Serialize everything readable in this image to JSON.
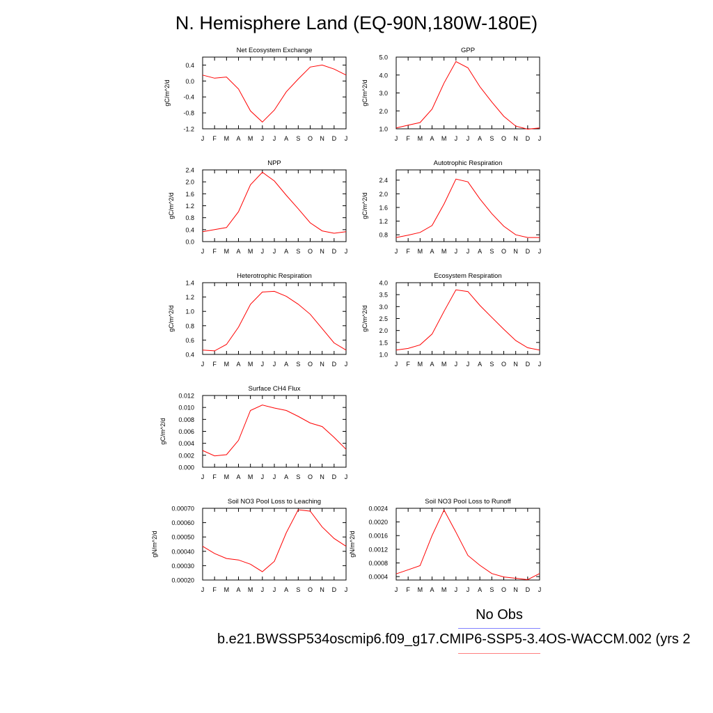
{
  "title": "N. Hemisphere Land (EQ-90N,180W-180E)",
  "legend": {
    "obs_label": "No Obs",
    "case_label": "b.e21.BWSSP534oscmip6.f09_g17.CMIP6-SSP5-3.4OS-WACCM.002 (yrs 2",
    "obs_color": "#8080ff",
    "case_color": "#ff8080"
  },
  "chart_data": [
    {
      "type": "line",
      "title": "Net Ecosystem Exchange",
      "ylabel": "gC/m^2/d",
      "x": [
        "J",
        "F",
        "M",
        "A",
        "M",
        "J",
        "J",
        "A",
        "S",
        "O",
        "N",
        "D",
        "J"
      ],
      "series": [
        {
          "color": "#ff0000",
          "values": [
            0.15,
            0.07,
            0.1,
            -0.2,
            -0.75,
            -1.03,
            -0.73,
            -0.27,
            0.05,
            0.35,
            0.4,
            0.3,
            0.15
          ]
        }
      ],
      "ylim": [
        -1.2,
        0.6
      ],
      "yticks": [
        "-1.2",
        "-0.8",
        "-0.4",
        "0.0",
        "0.4"
      ]
    },
    {
      "type": "line",
      "title": "GPP",
      "ylabel": "gC/m^2/d",
      "x": [
        "J",
        "F",
        "M",
        "A",
        "M",
        "J",
        "J",
        "A",
        "S",
        "O",
        "N",
        "D",
        "J"
      ],
      "series": [
        {
          "color": "#ff0000",
          "values": [
            1.05,
            1.2,
            1.35,
            2.1,
            3.55,
            4.75,
            4.4,
            3.35,
            2.5,
            1.7,
            1.15,
            0.98,
            1.05
          ]
        }
      ],
      "ylim": [
        1.0,
        5.0
      ],
      "yticks": [
        "1.0",
        "2.0",
        "3.0",
        "4.0",
        "5.0"
      ]
    },
    {
      "type": "line",
      "title": "NPP",
      "ylabel": "gC/m^2/d",
      "x": [
        "J",
        "F",
        "M",
        "A",
        "M",
        "J",
        "J",
        "A",
        "S",
        "O",
        "N",
        "D",
        "J"
      ],
      "series": [
        {
          "color": "#ff0000",
          "values": [
            0.33,
            0.4,
            0.47,
            1.0,
            1.9,
            2.32,
            2.03,
            1.55,
            1.1,
            0.63,
            0.36,
            0.28,
            0.33
          ]
        }
      ],
      "ylim": [
        0.0,
        2.4
      ],
      "yticks": [
        "0.0",
        "0.4",
        "0.8",
        "1.2",
        "1.6",
        "2.0",
        "2.4"
      ]
    },
    {
      "type": "line",
      "title": "Autotrophic Respiration",
      "ylabel": "gC/m^2/d",
      "x": [
        "J",
        "F",
        "M",
        "A",
        "M",
        "J",
        "J",
        "A",
        "S",
        "O",
        "N",
        "D",
        "J"
      ],
      "series": [
        {
          "color": "#ff0000",
          "values": [
            0.72,
            0.79,
            0.87,
            1.07,
            1.7,
            2.43,
            2.35,
            1.85,
            1.42,
            1.05,
            0.8,
            0.72,
            0.72
          ]
        }
      ],
      "ylim": [
        0.6,
        2.7
      ],
      "yticks": [
        "0.8",
        "1.2",
        "1.6",
        "2.0",
        "2.4"
      ]
    },
    {
      "type": "line",
      "title": "Heterotrophic Respiration",
      "ylabel": "gC/m^2/d",
      "x": [
        "J",
        "F",
        "M",
        "A",
        "M",
        "J",
        "J",
        "A",
        "S",
        "O",
        "N",
        "D",
        "J"
      ],
      "series": [
        {
          "color": "#ff0000",
          "values": [
            0.46,
            0.45,
            0.54,
            0.78,
            1.1,
            1.27,
            1.28,
            1.21,
            1.1,
            0.96,
            0.76,
            0.56,
            0.46
          ]
        }
      ],
      "ylim": [
        0.4,
        1.4
      ],
      "yticks": [
        "0.4",
        "0.6",
        "0.8",
        "1.0",
        "1.2",
        "1.4"
      ]
    },
    {
      "type": "line",
      "title": "Ecosystem Respiration",
      "ylabel": "gC/m^2/d",
      "x": [
        "J",
        "F",
        "M",
        "A",
        "M",
        "J",
        "J",
        "A",
        "S",
        "O",
        "N",
        "D",
        "J"
      ],
      "series": [
        {
          "color": "#ff0000",
          "values": [
            1.18,
            1.25,
            1.4,
            1.85,
            2.8,
            3.7,
            3.63,
            3.05,
            2.55,
            2.05,
            1.58,
            1.28,
            1.18
          ]
        }
      ],
      "ylim": [
        1.0,
        4.0
      ],
      "yticks": [
        "1.0",
        "1.5",
        "2.0",
        "2.5",
        "3.0",
        "3.5",
        "4.0"
      ]
    },
    {
      "type": "line",
      "title": "Surface CH4 Flux",
      "ylabel": "gC/m^2/d",
      "x": [
        "J",
        "F",
        "M",
        "A",
        "M",
        "J",
        "J",
        "A",
        "S",
        "O",
        "N",
        "D",
        "J"
      ],
      "series": [
        {
          "color": "#ff0000",
          "values": [
            0.0028,
            0.0019,
            0.0021,
            0.0045,
            0.0095,
            0.0104,
            0.0099,
            0.0095,
            0.0085,
            0.0074,
            0.0068,
            0.005,
            0.003
          ]
        }
      ],
      "ylim": [
        0.0,
        0.012
      ],
      "yticks": [
        "0.000",
        "0.002",
        "0.004",
        "0.006",
        "0.008",
        "0.010",
        "0.012"
      ]
    },
    {
      "type": "line",
      "title": "Soil NO3 Pool Loss to Leaching",
      "ylabel": "gN/m^2/d",
      "x": [
        "J",
        "F",
        "M",
        "A",
        "M",
        "J",
        "J",
        "A",
        "S",
        "O",
        "N",
        "D",
        "J"
      ],
      "series": [
        {
          "color": "#ff0000",
          "values": [
            0.000435,
            0.000385,
            0.00035,
            0.00034,
            0.00031,
            0.000258,
            0.00033,
            0.00053,
            0.00069,
            0.00068,
            0.00057,
            0.00049,
            0.000435
          ]
        }
      ],
      "ylim": [
        0.0002,
        0.0007
      ],
      "yticks": [
        "0.00020",
        "0.00030",
        "0.00040",
        "0.00050",
        "0.00060",
        "0.00070"
      ]
    },
    {
      "type": "line",
      "title": "Soil NO3 Pool Loss to Runoff",
      "ylabel": "gN/m^2/d",
      "x": [
        "J",
        "F",
        "M",
        "A",
        "M",
        "J",
        "J",
        "A",
        "S",
        "O",
        "N",
        "D",
        "J"
      ],
      "series": [
        {
          "color": "#ff0000",
          "values": [
            0.00048,
            0.0006,
            0.00072,
            0.0016,
            0.00235,
            0.0017,
            0.00102,
            0.00073,
            0.00049,
            0.00039,
            0.00035,
            0.00031,
            0.00049
          ]
        }
      ],
      "ylim": [
        0.0003,
        0.0024
      ],
      "yticks": [
        "0.0004",
        "0.0008",
        "0.0012",
        "0.0016",
        "0.0020",
        "0.0024"
      ]
    }
  ]
}
